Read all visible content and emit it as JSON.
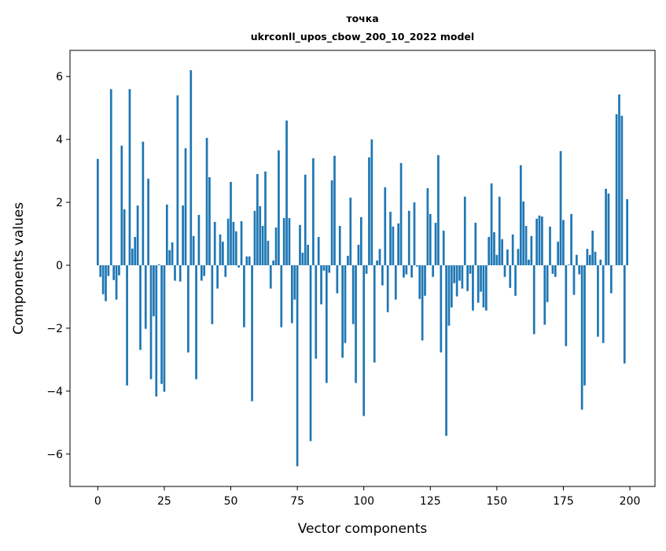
{
  "chart_data": {
    "type": "bar",
    "title": "точка",
    "subtitle": "ukrconll_upos_cbow_200_10_2022 model",
    "xlabel": "Vector components",
    "ylabel": "Components values",
    "xlim": [
      -10.45,
      209.45
    ],
    "ylim": [
      -7.03,
      6.83
    ],
    "xticks": [
      0,
      25,
      50,
      75,
      100,
      125,
      150,
      175,
      200
    ],
    "yticks": [
      -6,
      -4,
      -2,
      0,
      2,
      4,
      6
    ],
    "ytick_labels": [
      "−6",
      "−4",
      "−2",
      "0",
      "2",
      "4",
      "6"
    ],
    "grid": false,
    "bar_color": "#1f77b4",
    "values": [
      3.38,
      -0.37,
      -0.92,
      -1.14,
      -0.34,
      5.6,
      -0.47,
      -1.09,
      -0.32,
      3.8,
      1.78,
      -3.82,
      5.6,
      0.53,
      0.9,
      1.9,
      -2.69,
      3.93,
      -2.02,
      2.75,
      -3.62,
      -1.62,
      -4.17,
      0.03,
      -3.77,
      -4.02,
      1.93,
      0.48,
      0.73,
      -0.49,
      5.4,
      -0.52,
      1.9,
      3.72,
      -2.77,
      6.2,
      0.93,
      -3.62,
      1.6,
      -0.49,
      -0.34,
      4.05,
      2.8,
      -1.87,
      1.38,
      -0.74,
      0.98,
      0.75,
      -0.37,
      1.48,
      2.65,
      1.38,
      1.08,
      -0.07,
      1.4,
      -1.97,
      0.28,
      0.28,
      -4.32,
      1.73,
      2.9,
      1.88,
      1.25,
      2.98,
      0.78,
      -0.74,
      0.15,
      1.2,
      3.65,
      -1.97,
      1.5,
      4.6,
      1.5,
      -1.84,
      -1.09,
      -6.39,
      1.28,
      0.4,
      2.88,
      0.65,
      -5.59,
      3.4,
      -2.97,
      0.9,
      -1.24,
      -0.17,
      -3.74,
      -0.24,
      2.7,
      3.48,
      -0.89,
      1.25,
      -2.94,
      -2.47,
      0.3,
      2.15,
      -1.87,
      -3.74,
      0.65,
      1.53,
      -4.79,
      -0.27,
      3.43,
      4.0,
      -3.09,
      0.15,
      0.52,
      -0.64,
      2.48,
      -1.49,
      1.7,
      1.23,
      -1.09,
      1.33,
      3.25,
      -0.39,
      -0.29,
      1.73,
      -0.39,
      2.0,
      -0.04,
      -1.07,
      -2.39,
      -0.97,
      2.45,
      1.63,
      -0.37,
      1.35,
      3.5,
      -2.77,
      1.1,
      -5.42,
      -1.92,
      -1.34,
      -0.57,
      -0.99,
      -0.49,
      -0.74,
      2.18,
      -0.82,
      -0.27,
      -1.44,
      1.35,
      -1.19,
      -0.84,
      -1.34,
      -1.44,
      0.9,
      2.6,
      1.05,
      0.33,
      2.18,
      0.83,
      -0.37,
      0.5,
      -0.72,
      0.98,
      -0.97,
      0.52,
      3.18,
      2.03,
      1.25,
      0.18,
      0.93,
      -2.19,
      1.48,
      1.58,
      1.55,
      -1.89,
      -1.17,
      1.23,
      -0.27,
      -0.37,
      0.75,
      3.63,
      1.44,
      -2.57,
      0.02,
      1.63,
      -0.94,
      0.33,
      -0.29,
      -4.59,
      -3.82,
      0.52,
      0.33,
      1.1,
      0.43,
      -2.27,
      0.18,
      -2.47,
      2.43,
      2.28,
      -0.89,
      0.0,
      4.8,
      5.43,
      4.75,
      -3.12,
      2.1
    ]
  }
}
